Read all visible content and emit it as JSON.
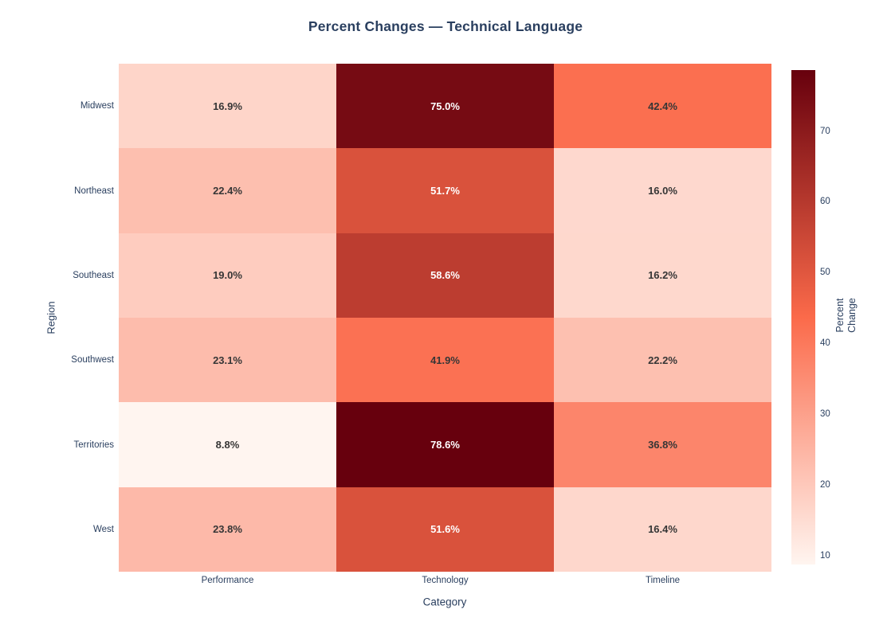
{
  "title": "Percent Changes — Technical Language",
  "chart_data": {
    "type": "heatmap",
    "x_categories": [
      "Performance",
      "Technology",
      "Timeline"
    ],
    "y_categories": [
      "Midwest",
      "Northeast",
      "Southeast",
      "Southwest",
      "Territories",
      "West"
    ],
    "values": [
      [
        16.9,
        75.0,
        42.4
      ],
      [
        22.4,
        51.7,
        16.0
      ],
      [
        19.0,
        58.6,
        16.2
      ],
      [
        23.1,
        41.9,
        22.2
      ],
      [
        8.8,
        78.6,
        36.8
      ],
      [
        23.8,
        51.6,
        16.4
      ]
    ],
    "value_suffix": "%",
    "xlabel": "Category",
    "ylabel": "Region",
    "legend_position": "right-colorbar",
    "grid": false,
    "colorbar": {
      "title_lines": [
        "Percent",
        "Change"
      ],
      "ticks": [
        10,
        20,
        30,
        40,
        50,
        60,
        70
      ],
      "min": 8.8,
      "max": 78.6,
      "colorscale": [
        [
          0,
          "#fff5f0"
        ],
        [
          0.5,
          "#fb6a4a"
        ],
        [
          1,
          "#67000d"
        ]
      ]
    }
  },
  "colors": {
    "title": "#2a3f5f",
    "axis_text": "#2a3f5f",
    "cell_text_dark": "#363636",
    "cell_text_light": "#ffffff",
    "background": "#ffffff"
  }
}
